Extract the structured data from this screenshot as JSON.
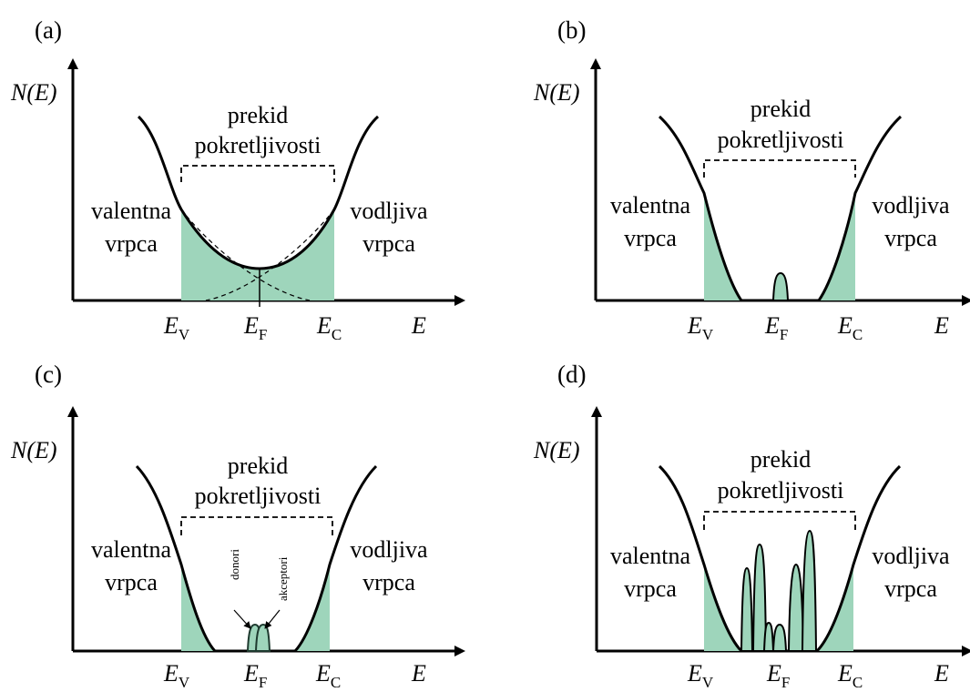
{
  "panels": [
    {
      "tag": "(a)",
      "y_label": "N(E)",
      "x_label": "E",
      "gap_label_1": "prekid",
      "gap_label_2": "pokretljivosti",
      "left_band_1": "valentna",
      "left_band_2": "vrpca",
      "right_band_1": "vodljiva",
      "right_band_2": "vrpca",
      "ticks": [
        {
          "main": "E",
          "sub": "V"
        },
        {
          "main": "E",
          "sub": "F"
        },
        {
          "main": "E",
          "sub": "C"
        }
      ]
    },
    {
      "tag": "(b)",
      "y_label": "N(E)",
      "x_label": "E",
      "gap_label_1": "prekid",
      "gap_label_2": "pokretljivosti",
      "left_band_1": "valentna",
      "left_band_2": "vrpca",
      "right_band_1": "vodljiva",
      "right_band_2": "vrpca",
      "ticks": [
        {
          "main": "E",
          "sub": "V"
        },
        {
          "main": "E",
          "sub": "F"
        },
        {
          "main": "E",
          "sub": "C"
        }
      ]
    },
    {
      "tag": "(c)",
      "y_label": "N(E)",
      "x_label": "E",
      "gap_label_1": "prekid",
      "gap_label_2": "pokretljivosti",
      "left_band_1": "valentna",
      "left_band_2": "vrpca",
      "right_band_1": "vodljiva",
      "right_band_2": "vrpca",
      "donor_label": "donori",
      "acceptor_label": "akceptori",
      "ticks": [
        {
          "main": "E",
          "sub": "V"
        },
        {
          "main": "E",
          "sub": "F"
        },
        {
          "main": "E",
          "sub": "C"
        }
      ]
    },
    {
      "tag": "(d)",
      "y_label": "N(E)",
      "x_label": "E",
      "gap_label_1": "prekid",
      "gap_label_2": "pokretljivosti",
      "left_band_1": "valentna",
      "left_band_2": "vrpca",
      "right_band_1": "vodljiva",
      "right_band_2": "vrpca",
      "ticks": [
        {
          "main": "E",
          "sub": "V"
        },
        {
          "main": "E",
          "sub": "F"
        },
        {
          "main": "E",
          "sub": "C"
        }
      ]
    }
  ],
  "colors": {
    "fill": "#9ed5bb",
    "line": "#000000",
    "peak_stroke": "#1e3a2f"
  }
}
